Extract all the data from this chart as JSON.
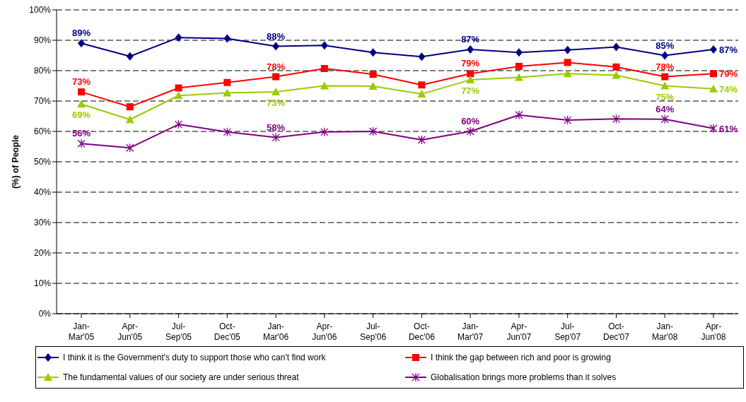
{
  "chart_data": {
    "type": "line",
    "ylabel": "(%) of People",
    "categories": [
      "Jan-Mar'05",
      "Apr-Jun'05",
      "Jul-Sep'05",
      "Oct-Dec'05",
      "Jan-Mar'06",
      "Apr-Jun'06",
      "Jul-Sep'06",
      "Oct-Dec'06",
      "Jan-Mar'07",
      "Apr-Jun'07",
      "Jul-Sep'07",
      "Oct-Dec'07",
      "Jan-Mar'08",
      "Apr-Jun'08"
    ],
    "series": [
      {
        "name": "I think it is the Government's duty to support those who can't find work",
        "color": "#000080",
        "marker": "diamond",
        "values": [
          89,
          84.7,
          90.9,
          90.6,
          88,
          88.3,
          86,
          84.6,
          87,
          86,
          86.8,
          87.8,
          85,
          87
        ],
        "value_labels": [
          "89%",
          null,
          null,
          null,
          "88%",
          null,
          null,
          null,
          "87%",
          null,
          null,
          null,
          "85%",
          "87%"
        ]
      },
      {
        "name": "I think the gap between rich and poor is growing",
        "color": "#ff0000",
        "marker": "square",
        "values": [
          73,
          68.1,
          74.3,
          76.1,
          78,
          80.7,
          78.8,
          75.3,
          79,
          81.4,
          82.7,
          81.2,
          78,
          79
        ],
        "value_labels": [
          "73%",
          null,
          null,
          null,
          "78%",
          null,
          null,
          null,
          "79%",
          null,
          null,
          null,
          "78%",
          "79%"
        ]
      },
      {
        "name": "The fundamental values of our society are under serious threat",
        "color": "#99cc00",
        "marker": "triangle",
        "values": [
          69,
          63.9,
          71.8,
          72.7,
          73,
          75,
          74.9,
          72.3,
          77,
          77.8,
          79,
          78.5,
          75,
          74
        ],
        "value_labels": [
          "69%",
          null,
          null,
          null,
          "73%",
          null,
          null,
          null,
          "77%",
          null,
          null,
          null,
          "75%",
          "74%"
        ]
      },
      {
        "name": "Globalisation brings more problems than it solves",
        "color": "#800080",
        "marker": "cross",
        "values": [
          56,
          54.6,
          62.3,
          59.8,
          58,
          59.8,
          60,
          57.2,
          60,
          65.4,
          63.7,
          64.1,
          64,
          61
        ],
        "value_labels": [
          "56%",
          null,
          null,
          null,
          "58%",
          null,
          null,
          null,
          "60%",
          null,
          null,
          null,
          "64%",
          "61%"
        ]
      }
    ],
    "ylim": [
      0,
      100
    ],
    "yticks": [
      {
        "value": 0,
        "label": "0%"
      },
      {
        "value": 10,
        "label": "10%"
      },
      {
        "value": 20,
        "label": "20%"
      },
      {
        "value": 30,
        "label": "30%"
      },
      {
        "value": 40,
        "label": "40%"
      },
      {
        "value": 50,
        "label": "50%"
      },
      {
        "value": 60,
        "label": "60%"
      },
      {
        "value": 70,
        "label": "70%"
      },
      {
        "value": 80,
        "label": "80%"
      },
      {
        "value": 90,
        "label": "90%"
      },
      {
        "value": 100,
        "label": "100%"
      }
    ],
    "grid": "y",
    "legend": "bottom",
    "line_style": "solid"
  }
}
